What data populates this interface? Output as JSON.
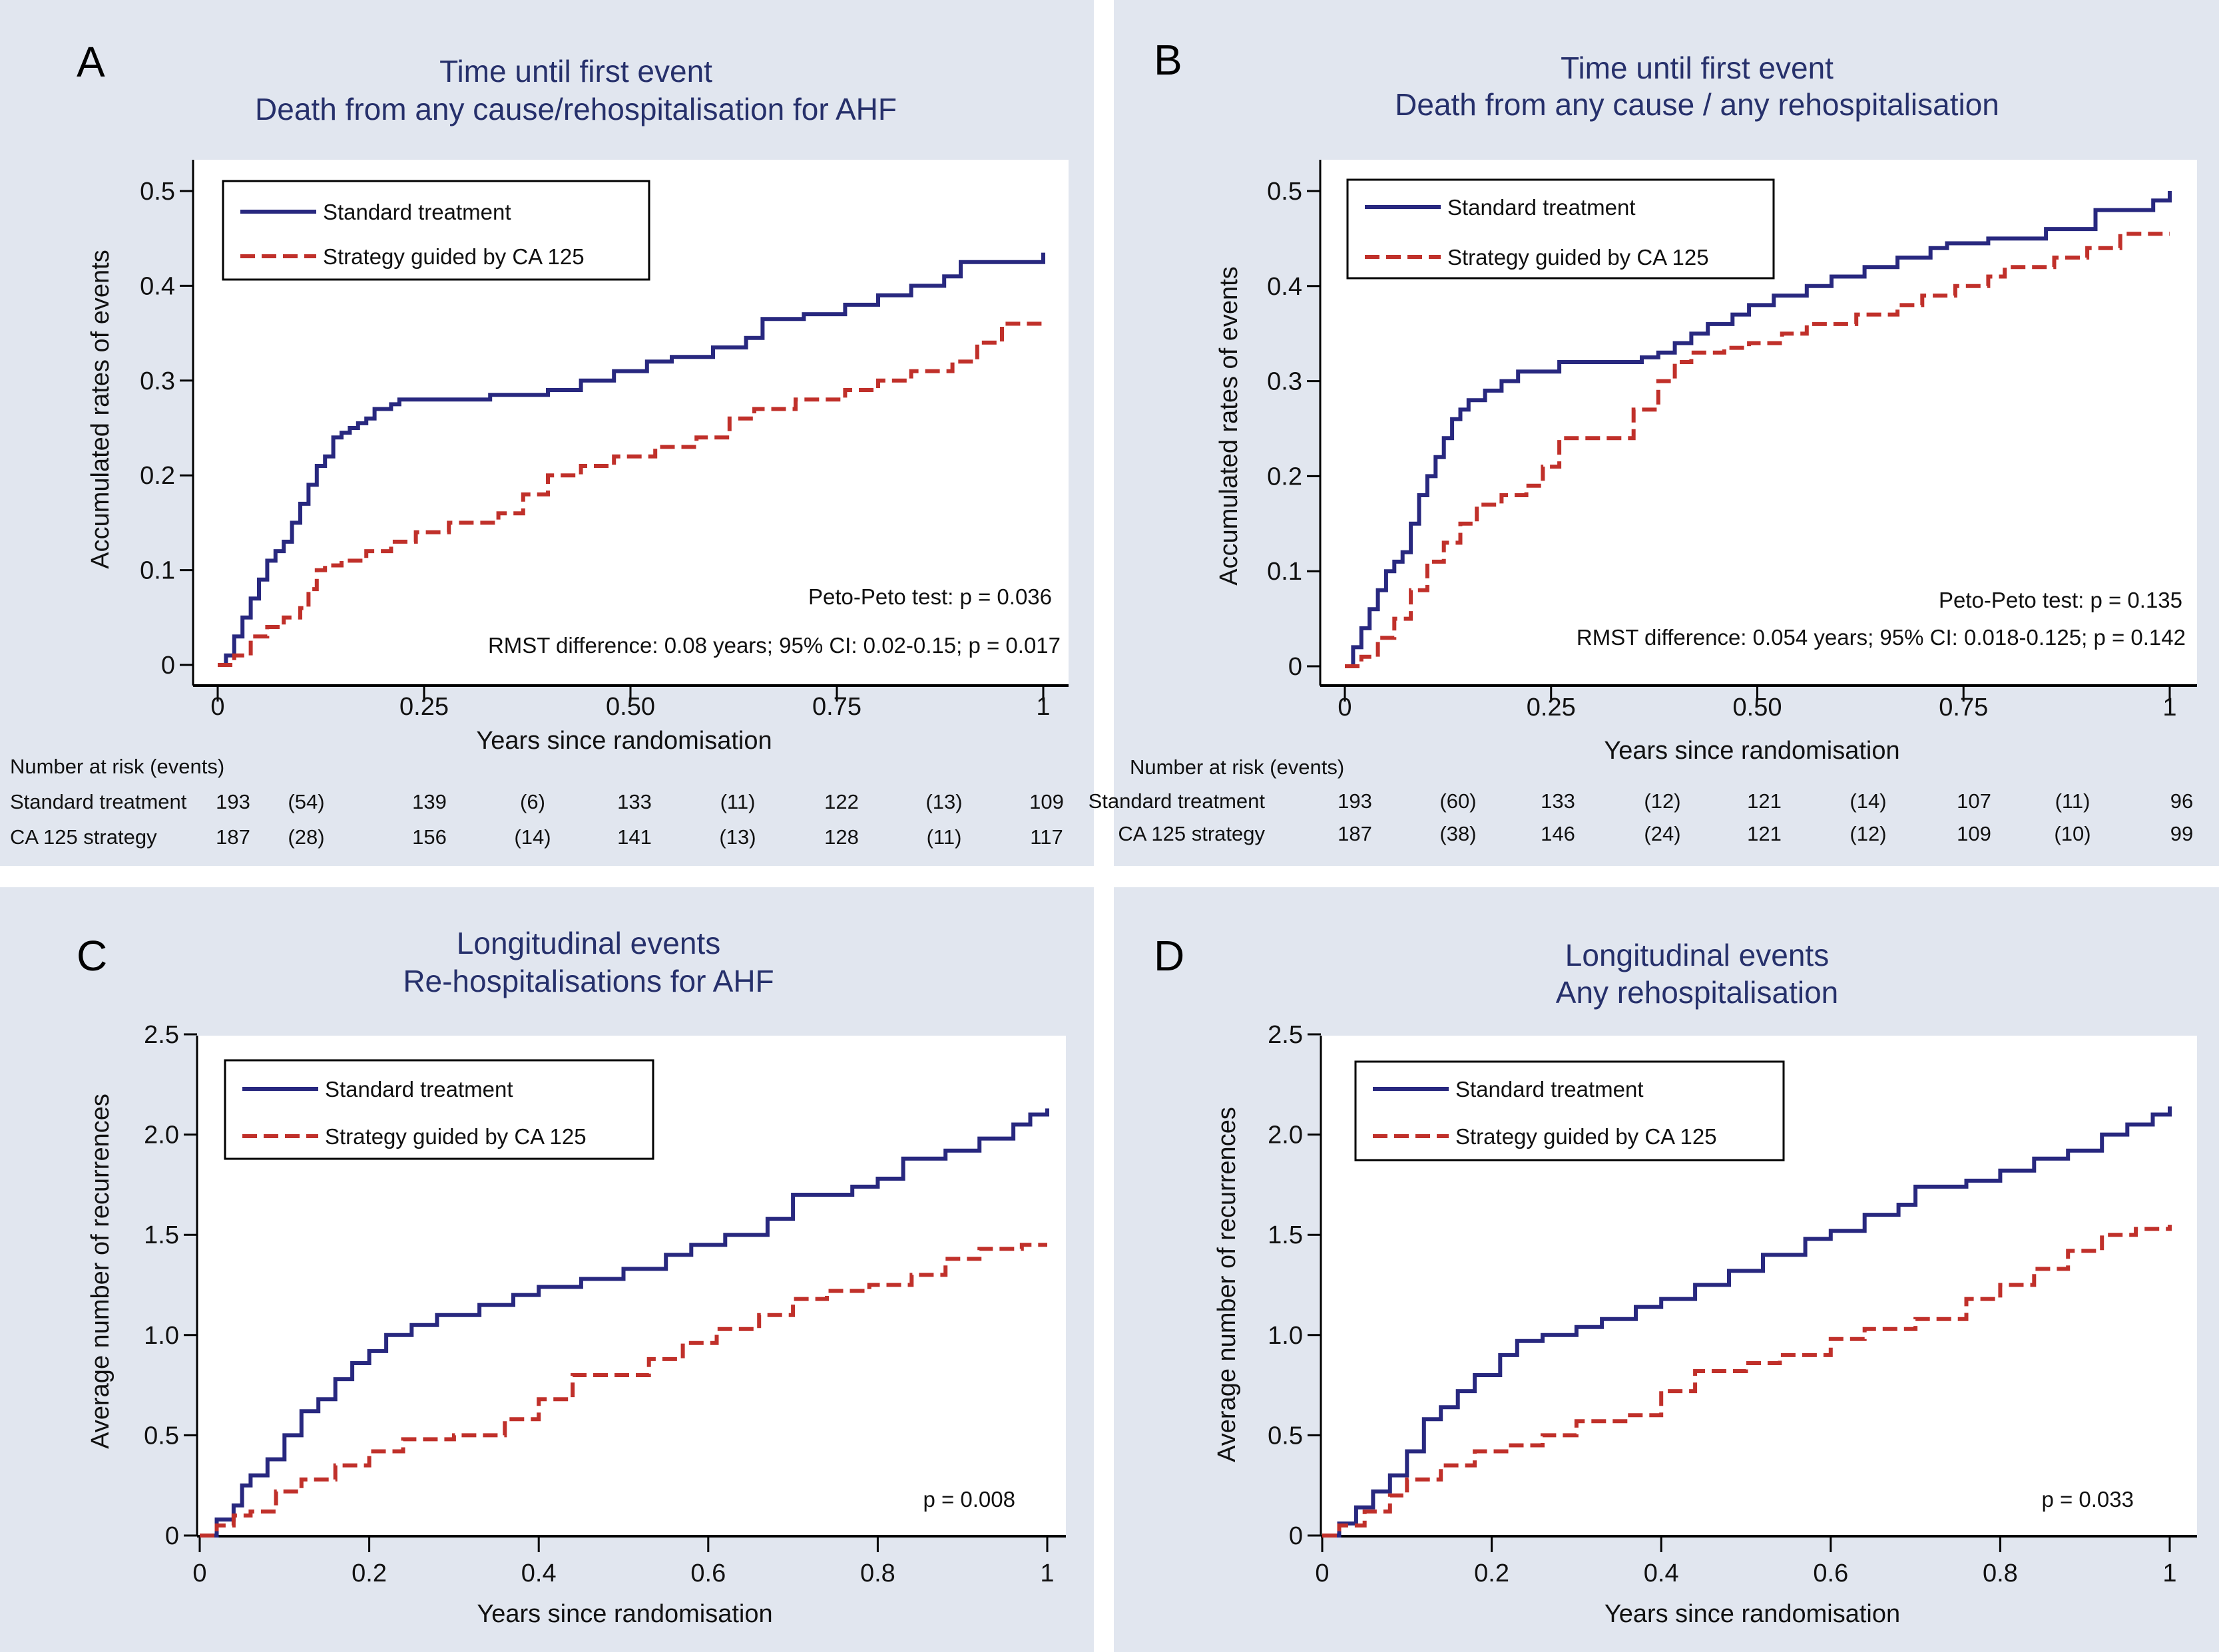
{
  "figure": {
    "background_color": "#e1e6ef",
    "series_colors": {
      "standard": "#28287f",
      "ca125": "#c0302a"
    },
    "legend": {
      "standard": "Standard treatment",
      "ca125": "Strategy guided by CA 125"
    }
  },
  "chart_data": [
    {
      "panel": "A",
      "type": "line",
      "step": true,
      "title": [
        "Time until first event",
        "Death from any cause/rehospitalisation for AHF"
      ],
      "xlabel": "Years since randomisation",
      "ylabel": "Accumulated rates of events",
      "xlim": [
        0,
        1
      ],
      "ylim": [
        0,
        0.5
      ],
      "xticks": [
        0,
        0.25,
        0.5,
        0.75,
        1
      ],
      "xtick_labels": [
        "0",
        "0.25",
        "0.50",
        "0.75",
        "1"
      ],
      "yticks": [
        0,
        0.1,
        0.2,
        0.3,
        0.4,
        0.5
      ],
      "ytick_labels": [
        "0",
        "0.1",
        "0.2",
        "0.3",
        "0.4",
        "0.5"
      ],
      "legend_position": "top-left",
      "annotations": [
        "Peto-Peto test: p = 0.036",
        "RMST difference: 0.08 years; 95% CI: 0.02-0.15; p = 0.017"
      ],
      "series": [
        {
          "name": "Standard treatment",
          "key": "standard",
          "style": "solid",
          "x": [
            0,
            0.01,
            0.02,
            0.03,
            0.04,
            0.05,
            0.06,
            0.07,
            0.08,
            0.09,
            0.1,
            0.11,
            0.12,
            0.13,
            0.14,
            0.15,
            0.16,
            0.17,
            0.18,
            0.19,
            0.21,
            0.22,
            0.25,
            0.33,
            0.4,
            0.44,
            0.48,
            0.52,
            0.55,
            0.6,
            0.64,
            0.66,
            0.71,
            0.76,
            0.8,
            0.84,
            0.88,
            0.9,
            0.98,
            1.0
          ],
          "y": [
            0,
            0.01,
            0.03,
            0.05,
            0.07,
            0.09,
            0.11,
            0.12,
            0.13,
            0.15,
            0.17,
            0.19,
            0.21,
            0.22,
            0.24,
            0.245,
            0.25,
            0.255,
            0.26,
            0.27,
            0.275,
            0.28,
            0.28,
            0.285,
            0.29,
            0.3,
            0.31,
            0.32,
            0.325,
            0.335,
            0.345,
            0.365,
            0.37,
            0.38,
            0.39,
            0.4,
            0.41,
            0.425,
            0.425,
            0.435
          ]
        },
        {
          "name": "Strategy guided by CA 125",
          "key": "ca125",
          "style": "dashed",
          "x": [
            0,
            0.02,
            0.04,
            0.06,
            0.08,
            0.1,
            0.11,
            0.12,
            0.13,
            0.15,
            0.18,
            0.21,
            0.24,
            0.28,
            0.34,
            0.37,
            0.4,
            0.44,
            0.48,
            0.53,
            0.58,
            0.62,
            0.65,
            0.7,
            0.76,
            0.8,
            0.84,
            0.89,
            0.92,
            0.95,
            1.0
          ],
          "y": [
            0,
            0.01,
            0.03,
            0.04,
            0.05,
            0.06,
            0.08,
            0.1,
            0.105,
            0.11,
            0.12,
            0.13,
            0.14,
            0.15,
            0.16,
            0.18,
            0.2,
            0.21,
            0.22,
            0.23,
            0.24,
            0.26,
            0.27,
            0.28,
            0.29,
            0.3,
            0.31,
            0.32,
            0.34,
            0.36,
            0.36
          ]
        }
      ],
      "risk_table": {
        "heading": "Number at risk (events)",
        "rows": [
          {
            "label": "Standard treatment",
            "values": [
              "193",
              "(54)",
              "139",
              "(6)",
              "133",
              "(11)",
              "122",
              "(13)",
              "109"
            ]
          },
          {
            "label": "CA 125 strategy",
            "values": [
              "187",
              "(28)",
              "156",
              "(14)",
              "141",
              "(13)",
              "128",
              "(11)",
              "117"
            ]
          }
        ]
      }
    },
    {
      "panel": "B",
      "type": "line",
      "step": true,
      "title": [
        "Time until first event",
        "Death from any cause / any rehospitalisation"
      ],
      "xlabel": "Years since randomisation",
      "ylabel": "Accumulated rates of events",
      "xlim": [
        0,
        1
      ],
      "ylim": [
        0,
        0.5
      ],
      "xticks": [
        0,
        0.25,
        0.5,
        0.75,
        1
      ],
      "xtick_labels": [
        "0",
        "0.25",
        "0.50",
        "0.75",
        "1"
      ],
      "yticks": [
        0,
        0.1,
        0.2,
        0.3,
        0.4,
        0.5
      ],
      "ytick_labels": [
        "0",
        "0.1",
        "0.2",
        "0.3",
        "0.4",
        "0.5"
      ],
      "legend_position": "top-left",
      "annotations": [
        "Peto-Peto test: p = 0.135",
        "RMST difference: 0.054 years; 95% CI: 0.018-0.125; p = 0.142"
      ],
      "series": [
        {
          "name": "Standard treatment",
          "key": "standard",
          "style": "solid",
          "x": [
            0,
            0.01,
            0.02,
            0.03,
            0.04,
            0.05,
            0.06,
            0.07,
            0.08,
            0.09,
            0.1,
            0.11,
            0.12,
            0.13,
            0.14,
            0.15,
            0.17,
            0.19,
            0.21,
            0.23,
            0.26,
            0.33,
            0.36,
            0.38,
            0.4,
            0.42,
            0.44,
            0.47,
            0.49,
            0.52,
            0.56,
            0.59,
            0.63,
            0.67,
            0.71,
            0.73,
            0.78,
            0.85,
            0.91,
            0.98,
            1.0
          ],
          "y": [
            0,
            0.02,
            0.04,
            0.06,
            0.08,
            0.1,
            0.11,
            0.12,
            0.15,
            0.18,
            0.2,
            0.22,
            0.24,
            0.26,
            0.27,
            0.28,
            0.29,
            0.3,
            0.31,
            0.31,
            0.32,
            0.32,
            0.325,
            0.33,
            0.34,
            0.35,
            0.36,
            0.37,
            0.38,
            0.39,
            0.4,
            0.41,
            0.42,
            0.43,
            0.44,
            0.445,
            0.45,
            0.46,
            0.48,
            0.49,
            0.5
          ]
        },
        {
          "name": "Strategy guided by CA 125",
          "key": "ca125",
          "style": "dashed",
          "x": [
            0,
            0.02,
            0.04,
            0.06,
            0.08,
            0.1,
            0.12,
            0.14,
            0.16,
            0.19,
            0.22,
            0.24,
            0.26,
            0.3,
            0.35,
            0.38,
            0.4,
            0.42,
            0.46,
            0.49,
            0.53,
            0.56,
            0.62,
            0.67,
            0.7,
            0.74,
            0.78,
            0.8,
            0.86,
            0.9,
            0.94,
            1.0
          ],
          "y": [
            0,
            0.01,
            0.03,
            0.05,
            0.08,
            0.11,
            0.13,
            0.15,
            0.17,
            0.18,
            0.19,
            0.21,
            0.24,
            0.24,
            0.27,
            0.3,
            0.32,
            0.33,
            0.335,
            0.34,
            0.35,
            0.36,
            0.37,
            0.38,
            0.39,
            0.4,
            0.41,
            0.42,
            0.43,
            0.44,
            0.455,
            0.455
          ]
        }
      ],
      "risk_table": {
        "heading": "Number at risk (events)",
        "rows": [
          {
            "label": "Standard treatment",
            "values": [
              "193",
              "(60)",
              "133",
              "(12)",
              "121",
              "(14)",
              "107",
              "(11)",
              "96"
            ]
          },
          {
            "label": "CA 125 strategy",
            "values": [
              "187",
              "(38)",
              "146",
              "(24)",
              "121",
              "(12)",
              "109",
              "(10)",
              "99"
            ]
          }
        ]
      }
    },
    {
      "panel": "C",
      "type": "line",
      "step": true,
      "title": [
        "Longitudinal events",
        "Re-hospitalisations for AHF"
      ],
      "xlabel": "Years since randomisation",
      "ylabel": "Average number of recurrences",
      "xlim": [
        0,
        1
      ],
      "ylim": [
        0,
        2.5
      ],
      "xticks": [
        0,
        0.2,
        0.4,
        0.6,
        0.8,
        1
      ],
      "xtick_labels": [
        "0",
        "0.2",
        "0.4",
        "0.6",
        "0.8",
        "1"
      ],
      "yticks": [
        0,
        0.5,
        1.0,
        1.5,
        2.0,
        2.5
      ],
      "ytick_labels": [
        "0",
        "0.5",
        "1.0",
        "1.5",
        "2.0",
        "2.5"
      ],
      "legend_position": "top-left",
      "annotations": [
        "p = 0.008"
      ],
      "series": [
        {
          "name": "Standard treatment",
          "key": "standard",
          "style": "solid",
          "x": [
            0,
            0.02,
            0.04,
            0.05,
            0.06,
            0.08,
            0.1,
            0.12,
            0.14,
            0.16,
            0.18,
            0.2,
            0.22,
            0.25,
            0.28,
            0.33,
            0.37,
            0.4,
            0.45,
            0.5,
            0.55,
            0.58,
            0.62,
            0.67,
            0.7,
            0.77,
            0.8,
            0.83,
            0.88,
            0.92,
            0.96,
            0.98,
            1.0
          ],
          "y": [
            0,
            0.08,
            0.15,
            0.25,
            0.3,
            0.38,
            0.5,
            0.62,
            0.68,
            0.78,
            0.86,
            0.92,
            1.0,
            1.05,
            1.1,
            1.15,
            1.2,
            1.24,
            1.28,
            1.33,
            1.4,
            1.45,
            1.5,
            1.58,
            1.7,
            1.74,
            1.78,
            1.88,
            1.92,
            1.98,
            2.05,
            2.1,
            2.13
          ]
        },
        {
          "name": "Strategy guided by CA 125",
          "key": "ca125",
          "style": "dashed",
          "x": [
            0,
            0.02,
            0.04,
            0.06,
            0.09,
            0.12,
            0.16,
            0.2,
            0.24,
            0.3,
            0.36,
            0.4,
            0.44,
            0.47,
            0.53,
            0.57,
            0.61,
            0.66,
            0.7,
            0.74,
            0.79,
            0.84,
            0.88,
            0.92,
            0.97,
            1.0
          ],
          "y": [
            0,
            0.05,
            0.1,
            0.12,
            0.22,
            0.28,
            0.35,
            0.42,
            0.48,
            0.5,
            0.58,
            0.68,
            0.8,
            0.8,
            0.88,
            0.96,
            1.03,
            1.1,
            1.18,
            1.22,
            1.25,
            1.3,
            1.38,
            1.43,
            1.45,
            1.45
          ]
        }
      ]
    },
    {
      "panel": "D",
      "type": "line",
      "step": true,
      "title": [
        "Longitudinal events",
        "Any rehospitalisation"
      ],
      "xlabel": "Years since randomisation",
      "ylabel": "Average number of recurrences",
      "xlim": [
        0,
        1
      ],
      "ylim": [
        0,
        2.5
      ],
      "xticks": [
        0,
        0.2,
        0.4,
        0.6,
        0.8,
        1
      ],
      "xtick_labels": [
        "0",
        "0.2",
        "0.4",
        "0.6",
        "0.8",
        "1"
      ],
      "yticks": [
        0,
        0.5,
        1.0,
        1.5,
        2.0,
        2.5
      ],
      "ytick_labels": [
        "0",
        "0.5",
        "1.0",
        "1.5",
        "2.0",
        "2.5"
      ],
      "legend_position": "top-left",
      "annotations": [
        "p = 0.033"
      ],
      "series": [
        {
          "name": "Standard treatment",
          "key": "standard",
          "style": "solid",
          "x": [
            0,
            0.02,
            0.04,
            0.06,
            0.08,
            0.1,
            0.12,
            0.14,
            0.16,
            0.18,
            0.21,
            0.23,
            0.26,
            0.3,
            0.33,
            0.37,
            0.4,
            0.44,
            0.48,
            0.52,
            0.57,
            0.6,
            0.64,
            0.68,
            0.7,
            0.76,
            0.8,
            0.84,
            0.88,
            0.92,
            0.95,
            0.98,
            1.0
          ],
          "y": [
            0,
            0.06,
            0.14,
            0.22,
            0.3,
            0.42,
            0.58,
            0.64,
            0.72,
            0.8,
            0.9,
            0.97,
            1.0,
            1.04,
            1.08,
            1.14,
            1.18,
            1.25,
            1.32,
            1.4,
            1.48,
            1.52,
            1.6,
            1.65,
            1.74,
            1.77,
            1.82,
            1.88,
            1.92,
            2.0,
            2.05,
            2.1,
            2.14
          ]
        },
        {
          "name": "Strategy guided by CA 125",
          "key": "ca125",
          "style": "dashed",
          "x": [
            0,
            0.02,
            0.05,
            0.08,
            0.1,
            0.14,
            0.18,
            0.22,
            0.26,
            0.3,
            0.36,
            0.4,
            0.44,
            0.5,
            0.54,
            0.6,
            0.64,
            0.7,
            0.76,
            0.8,
            0.84,
            0.88,
            0.92,
            0.96,
            1.0
          ],
          "y": [
            0,
            0.05,
            0.12,
            0.2,
            0.28,
            0.35,
            0.42,
            0.45,
            0.5,
            0.57,
            0.6,
            0.72,
            0.82,
            0.86,
            0.9,
            0.98,
            1.03,
            1.08,
            1.18,
            1.25,
            1.33,
            1.42,
            1.5,
            1.53,
            1.55
          ]
        }
      ]
    }
  ]
}
